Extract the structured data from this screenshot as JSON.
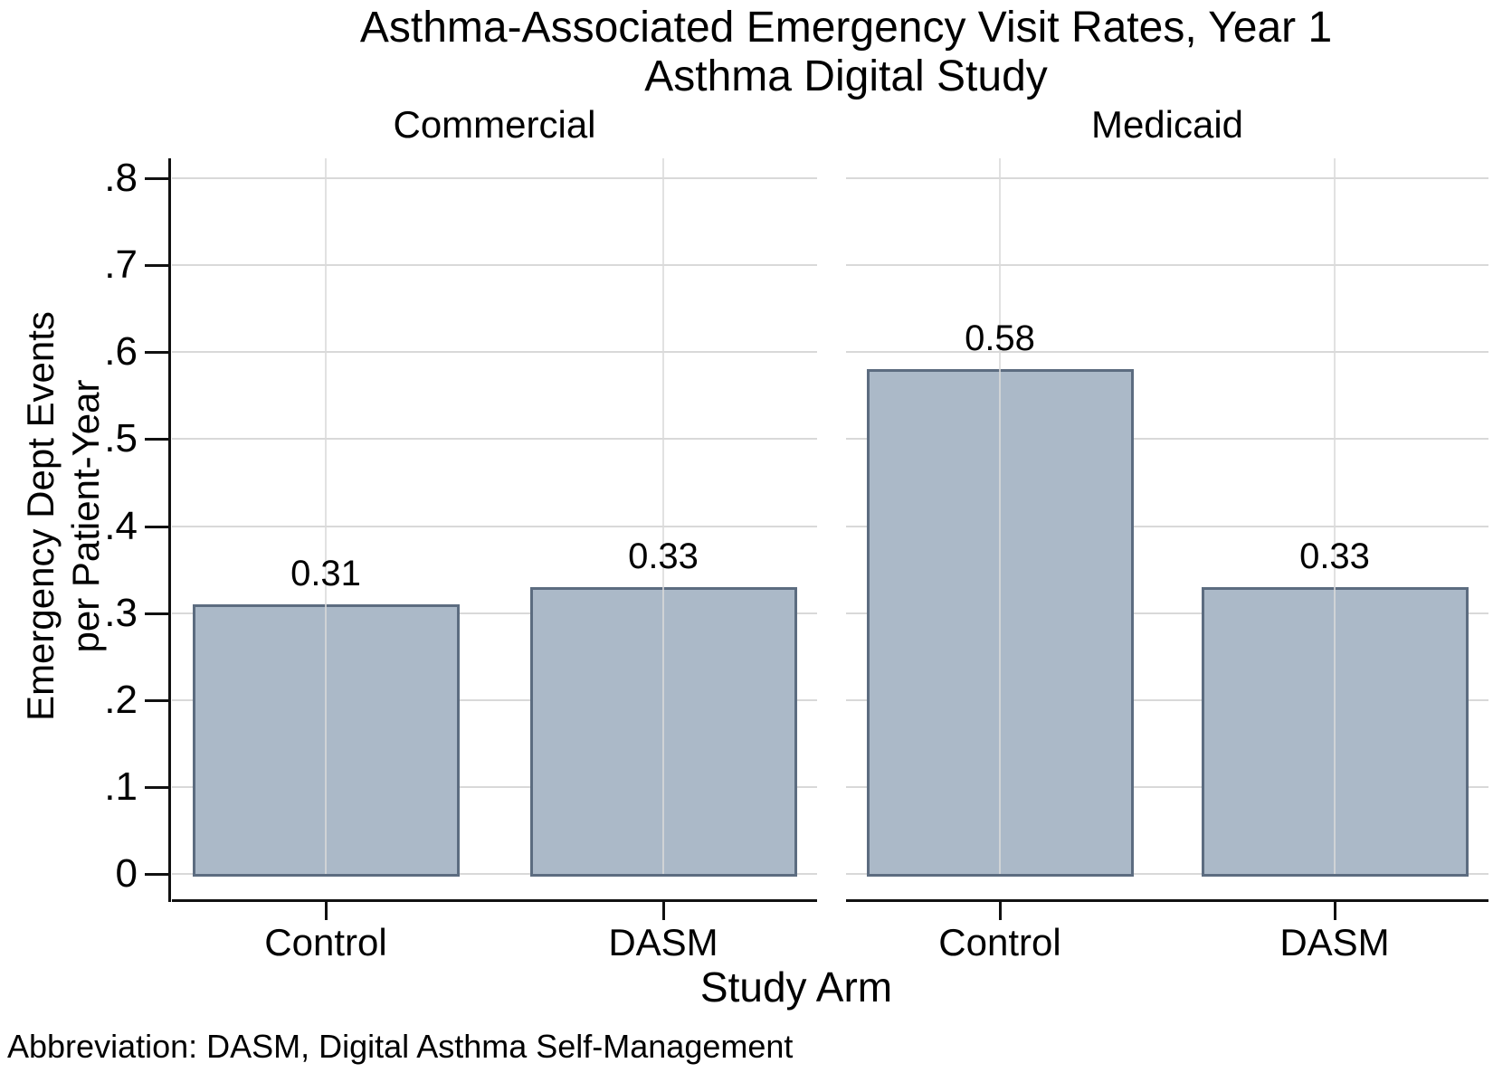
{
  "chart_data": {
    "type": "bar",
    "title": "Asthma-Associated Emergency Visit Rates, Year 1",
    "subtitle": "Asthma Digital Study",
    "xlabel": "Study Arm",
    "ylabel_line1": "Emergency Dept Events",
    "ylabel_line2": "per Patient-Year",
    "ylim": [
      0,
      0.8
    ],
    "yticks": [
      0,
      0.1,
      0.2,
      0.3,
      0.4,
      0.5,
      0.6,
      0.7,
      0.8
    ],
    "ytick_labels": [
      "0",
      ".1",
      ".2",
      ".3",
      ".4",
      ".5",
      ".6",
      ".7",
      ".8"
    ],
    "grid": true,
    "legend_position": "none",
    "panels": [
      {
        "label": "Commercial",
        "categories": [
          "Control",
          "DASM"
        ],
        "values": [
          0.31,
          0.33
        ],
        "value_labels": [
          "0.31",
          "0.33"
        ]
      },
      {
        "label": "Medicaid",
        "categories": [
          "Control",
          "DASM"
        ],
        "values": [
          0.58,
          0.33
        ],
        "value_labels": [
          "0.58",
          "0.33"
        ]
      }
    ],
    "note": "Abbreviation: DASM, Digital Asthma Self-Management",
    "colors": {
      "bar_fill": "#abb9c8",
      "bar_border": "#5c6c80",
      "gridline": "#d9d9d9",
      "axis": "#111111",
      "text": "#000000",
      "background": "#ffffff"
    }
  }
}
